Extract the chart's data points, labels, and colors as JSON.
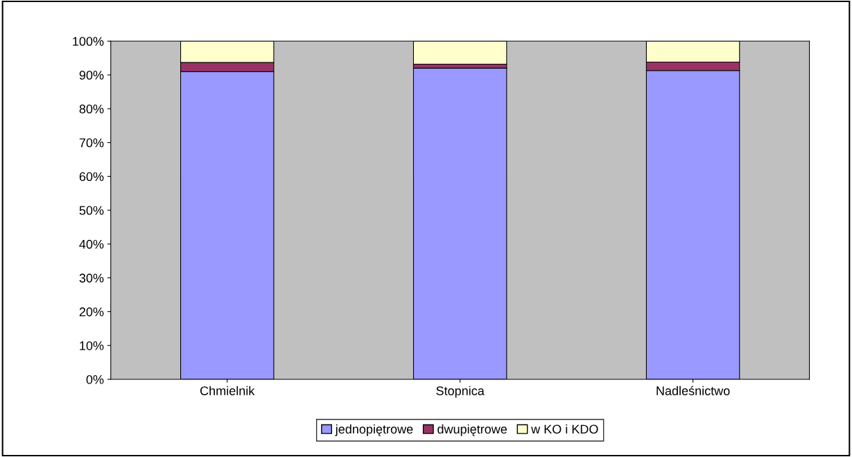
{
  "chart_data": {
    "type": "bar",
    "stacked": true,
    "categories": [
      "Chmielnik",
      "Stopnica",
      "Nadleśnictwo"
    ],
    "series": [
      {
        "name": "jednopiętrowe",
        "color": "#9999ff",
        "values": [
          91,
          92,
          91.3
        ]
      },
      {
        "name": "dwupiętrowe",
        "color": "#993366",
        "values": [
          2.7,
          1.2,
          2.5
        ]
      },
      {
        "name": "w KO i KDO",
        "color": "#ffffcc",
        "values": [
          6.3,
          6.8,
          6.2
        ]
      }
    ],
    "ylim": [
      0,
      100
    ],
    "yticks": [
      {
        "value": 0,
        "label": "0%"
      },
      {
        "value": 10,
        "label": "10%"
      },
      {
        "value": 20,
        "label": "20%"
      },
      {
        "value": 30,
        "label": "30%"
      },
      {
        "value": 40,
        "label": "40%"
      },
      {
        "value": 50,
        "label": "50%"
      },
      {
        "value": 60,
        "label": "60%"
      },
      {
        "value": 70,
        "label": "70%"
      },
      {
        "value": 80,
        "label": "80%"
      },
      {
        "value": 90,
        "label": "90%"
      },
      {
        "value": 100,
        "label": "100%"
      }
    ],
    "grid": false,
    "legend": "bottom"
  }
}
